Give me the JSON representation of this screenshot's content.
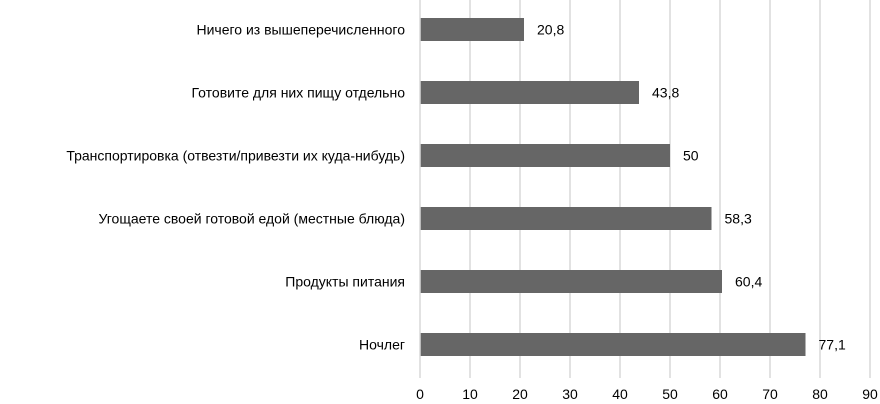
{
  "chart_data": {
    "type": "bar",
    "orientation": "horizontal",
    "categories": [
      "Ничего из вышеперечисленного",
      "Готовите для них пищу отдельно",
      "Транспортировка (отвезти/привезти их куда-нибудь)",
      "Угощаете своей готовой едой (местные блюда)",
      "Продукты питания",
      "Ночлег"
    ],
    "values": [
      20.8,
      43.8,
      50,
      58.3,
      60.4,
      77.1
    ],
    "value_labels": [
      "20,8",
      "43,8",
      "50",
      "58,3",
      "60,4",
      "77,1"
    ],
    "xlim": [
      0,
      90
    ],
    "xticks": [
      "0",
      "10",
      "20",
      "30",
      "40",
      "50",
      "60",
      "70",
      "80",
      "90"
    ],
    "grid": "vertical",
    "bar_color": "#666666",
    "grid_color": "#d9d9d9",
    "title": "",
    "xlabel": "",
    "ylabel": ""
  }
}
